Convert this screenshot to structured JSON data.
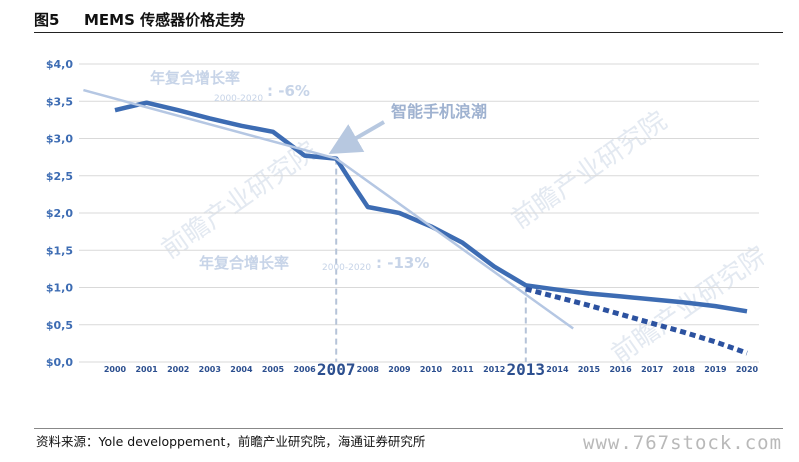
{
  "header": {
    "figure_number": "图5",
    "title": "MEMS 传感器价格走势"
  },
  "footer": {
    "source": "资料来源：Yole developpement，前瞻产业研究院，海通证券研究所",
    "watermark": "www.767stock.com"
  },
  "chart_data": {
    "type": "line",
    "x": [
      2000,
      2001,
      2002,
      2003,
      2004,
      2005,
      2006,
      2007,
      2008,
      2009,
      2010,
      2011,
      2012,
      2013,
      2014,
      2015,
      2016,
      2017,
      2018,
      2019,
      2020
    ],
    "x_tick_labels": [
      "2000",
      "2001",
      "2002",
      "2003",
      "2004",
      "2005",
      "2006",
      "2007",
      "2008",
      "2009",
      "2010",
      "2011",
      "2012",
      "2013",
      "2014",
      "2015",
      "2016",
      "2017",
      "2018",
      "2019",
      "2020"
    ],
    "highlighted_years": [
      2007,
      2013
    ],
    "ylim": [
      0,
      4.0
    ],
    "y_ticks": [
      0,
      0.5,
      1.0,
      1.5,
      2.0,
      2.5,
      3.0,
      3.5,
      4.0
    ],
    "y_tick_labels": [
      "$0,0",
      "$0,5",
      "$1,0",
      "$1,5",
      "$2,0",
      "$2,5",
      "$3,0",
      "$3,5",
      "$4,0"
    ],
    "grid": true,
    "series": [
      {
        "role": "actual",
        "style": "solid",
        "color": "#3d6cb3",
        "points": [
          [
            2000,
            3.38
          ],
          [
            2001,
            3.48
          ],
          [
            2002,
            3.38
          ],
          [
            2003,
            3.27
          ],
          [
            2004,
            3.17
          ],
          [
            2005,
            3.09
          ],
          [
            2006,
            2.77
          ],
          [
            2007,
            2.73
          ],
          [
            2007.5,
            2.4
          ],
          [
            2008,
            2.08
          ],
          [
            2009,
            2.0
          ],
          [
            2010,
            1.82
          ],
          [
            2011,
            1.6
          ],
          [
            2012,
            1.28
          ],
          [
            2013,
            1.03
          ],
          [
            2014,
            0.97
          ],
          [
            2015,
            0.92
          ],
          [
            2016,
            0.88
          ],
          [
            2017,
            0.84
          ],
          [
            2018,
            0.8
          ],
          [
            2019,
            0.75
          ],
          [
            2020,
            0.68
          ]
        ]
      },
      {
        "role": "forecast",
        "style": "dotted",
        "color": "#2c52a0",
        "points": [
          [
            2013,
            0.98
          ],
          [
            2014,
            0.87
          ],
          [
            2015,
            0.76
          ],
          [
            2016,
            0.64
          ],
          [
            2017,
            0.52
          ],
          [
            2018,
            0.4
          ],
          [
            2019,
            0.27
          ],
          [
            2020,
            0.12
          ]
        ]
      },
      {
        "role": "trend-1",
        "style": "solid",
        "color": "#b5c7e3",
        "points": [
          [
            1999,
            3.65
          ],
          [
            2007,
            2.73
          ]
        ]
      },
      {
        "role": "trend-2",
        "style": "solid",
        "color": "#b5c7e3",
        "points": [
          [
            2007,
            2.73
          ],
          [
            2014.5,
            0.45
          ]
        ]
      }
    ],
    "annotations": {
      "cagr1": {
        "label": "年复合增长率",
        "period": "2000-2020",
        "value": ": -6%"
      },
      "cagr2": {
        "label": "年复合增长率",
        "period": "2000-2020",
        "value": ": -13%"
      },
      "arrow_label": "智能手机浪潮"
    },
    "chart_watermark": "前瞻产业研究院"
  }
}
